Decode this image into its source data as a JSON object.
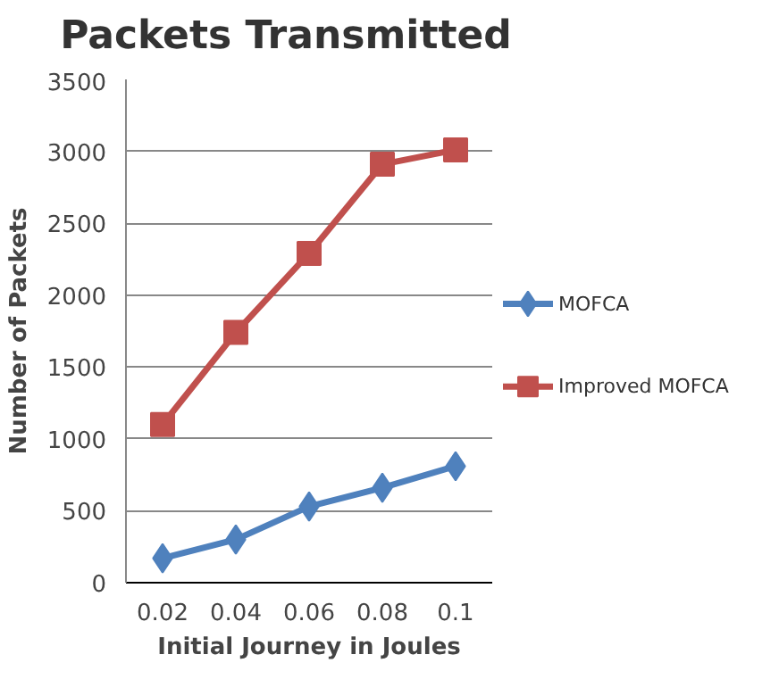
{
  "chart_data": {
    "type": "line",
    "title": "Packets Transmitted",
    "xlabel": "Initial Journey in Joules",
    "ylabel": "Number of Packets",
    "categories": [
      "0.02",
      "0.04",
      "0.06",
      "0.08",
      "0.1"
    ],
    "series": [
      {
        "name": "MOFCA",
        "color": "#4f81bd",
        "marker": "diamond",
        "values": [
          170,
          300,
          530,
          660,
          810
        ]
      },
      {
        "name": "Improved MOFCA",
        "color": "#c0504d",
        "marker": "square",
        "values": [
          1100,
          1740,
          2290,
          2910,
          3010
        ]
      }
    ],
    "ylim": [
      0,
      3500
    ],
    "yticks": [
      0,
      500,
      1000,
      1500,
      2000,
      2500,
      3000,
      3500
    ],
    "grid": "y",
    "legend": "right"
  }
}
